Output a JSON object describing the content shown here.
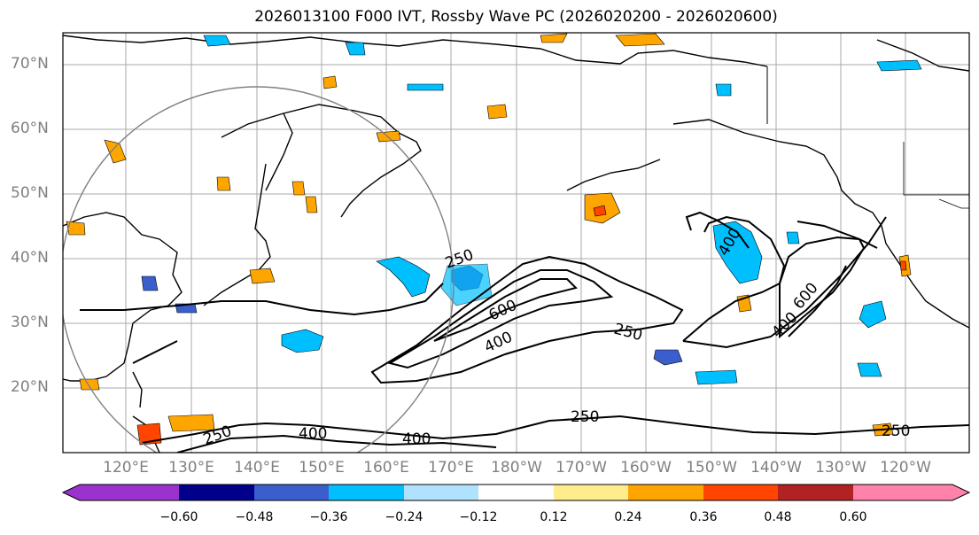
{
  "title": "2026013100 F000 IVT, Rossby Wave PC (2026020200 - 2026020600)",
  "lat_labels": [
    "70°N",
    "60°N",
    "50°N",
    "40°N",
    "30°N",
    "20°N"
  ],
  "lon_labels": [
    "120°E",
    "130°E",
    "140°E",
    "150°E",
    "160°E",
    "170°E",
    "180°W",
    "170°W",
    "160°W",
    "150°W",
    "140°W",
    "130°W",
    "120°W"
  ],
  "contour_labels": [
    "250",
    "600",
    "400",
    "250",
    "400",
    "400",
    "400",
    "250",
    "250",
    "250",
    "600",
    "400"
  ],
  "colorbar": {
    "ticks": [
      "−0.60",
      "−0.48",
      "−0.36",
      "−0.24",
      "−0.12",
      "0.12",
      "0.24",
      "0.36",
      "0.48",
      "0.60"
    ],
    "colors": [
      "#9a32cd",
      "#00008b",
      "#3a5fcd",
      "#00bfff",
      "#b0e2ff",
      "#ffffff",
      "#ffec8b",
      "#ffa500",
      "#ff4500",
      "#b22222",
      "#ff82ab"
    ]
  },
  "colors": {
    "pos_light": "#ffec8b",
    "pos_mid": "#ffa500",
    "pos_strong": "#ff4500",
    "neg_light": "#b0e2ff",
    "neg_mid": "#00bfff",
    "neg_strong": "#3a5fcd"
  }
}
